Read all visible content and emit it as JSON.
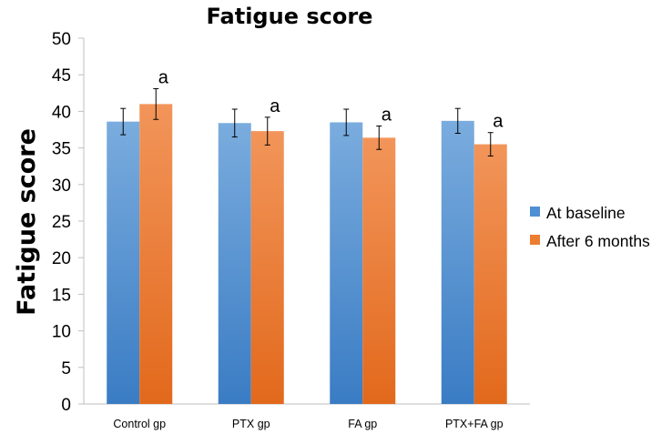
{
  "chart_data": {
    "type": "bar",
    "title": "Fatigue score",
    "xlabel": "",
    "ylabel": "Fatigue score",
    "ylim": [
      0,
      50
    ],
    "yticks": [
      0,
      5,
      10,
      15,
      20,
      25,
      30,
      35,
      40,
      45,
      50
    ],
    "categories": [
      "Control gp",
      "PTX gp",
      "FA gp",
      "PTX+FA gp"
    ],
    "series": [
      {
        "name": "At baseline",
        "color": "#4f8fd4",
        "values": [
          38.6,
          38.4,
          38.5,
          38.7
        ],
        "errors": [
          1.8,
          1.9,
          1.8,
          1.7
        ]
      },
      {
        "name": "After 6 months",
        "color": "#ec7d31",
        "values": [
          41.0,
          37.3,
          36.4,
          35.5
        ],
        "errors": [
          2.1,
          1.9,
          1.6,
          1.6
        ]
      }
    ],
    "annotations": [
      "a",
      "a",
      "a",
      "a"
    ],
    "legend_position": "right"
  }
}
